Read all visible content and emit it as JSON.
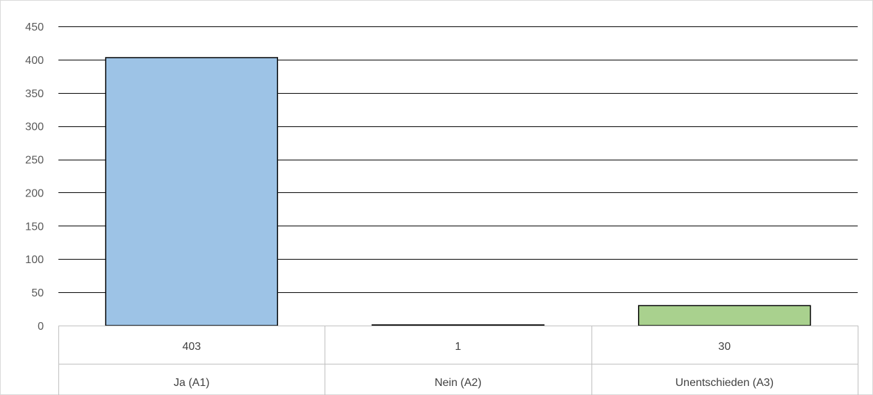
{
  "chart_data": {
    "type": "bar",
    "categories": [
      "Ja (A1)",
      "Nein (A2)",
      "Unentschieden (A3)"
    ],
    "values": [
      403,
      1,
      30
    ],
    "value_labels": [
      "403",
      "1",
      "30"
    ],
    "colors": [
      "#9dc3e6",
      "#bdd7ee",
      "#a9d18e"
    ],
    "ylim": [
      0,
      450
    ],
    "yticks": [
      "0",
      "50",
      "100",
      "150",
      "200",
      "250",
      "300",
      "350",
      "400",
      "450"
    ],
    "grid": true,
    "data_table": true,
    "title": "",
    "xlabel": "",
    "ylabel": ""
  }
}
